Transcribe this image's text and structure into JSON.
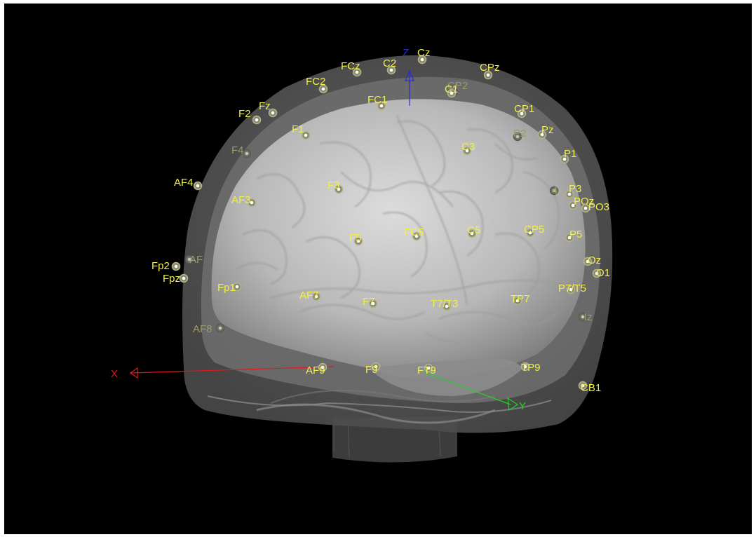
{
  "viewer": {
    "background": "#000000",
    "label_color": "#f2ef4a",
    "dim_label_color": "#9c9a6a"
  },
  "axes": [
    {
      "id": "x",
      "label": "X",
      "color": "#e0191c"
    },
    {
      "id": "y",
      "label": "Y",
      "color": "#22d22a"
    },
    {
      "id": "z",
      "label": "Z",
      "color": "#2b2bd6"
    }
  ],
  "electrodes": [
    {
      "label": "Cz"
    },
    {
      "label": "FCz"
    },
    {
      "label": "C2"
    },
    {
      "label": "CPz"
    },
    {
      "label": "FC2"
    },
    {
      "label": "CP2"
    },
    {
      "label": "C1"
    },
    {
      "label": "FC1"
    },
    {
      "label": "F2"
    },
    {
      "label": "Fz"
    },
    {
      "label": "CP1"
    },
    {
      "label": "F1"
    },
    {
      "label": "P2"
    },
    {
      "label": "Pz"
    },
    {
      "label": "C3"
    },
    {
      "label": "F4"
    },
    {
      "label": "P1"
    },
    {
      "label": "AF4"
    },
    {
      "label": "F3"
    },
    {
      "label": "4"
    },
    {
      "label": "P3"
    },
    {
      "label": "AF3"
    },
    {
      "label": "POz"
    },
    {
      "label": "PO3"
    },
    {
      "label": "FC5"
    },
    {
      "label": "C5"
    },
    {
      "label": "CP5"
    },
    {
      "label": "P5"
    },
    {
      "label": "F5"
    },
    {
      "label": "AF"
    },
    {
      "label": "Oz"
    },
    {
      "label": "Fp2"
    },
    {
      "label": "O1"
    },
    {
      "label": "Fpz"
    },
    {
      "label": "Fp1"
    },
    {
      "label": "P7/T5"
    },
    {
      "label": "AF7"
    },
    {
      "label": "F7"
    },
    {
      "label": "T7/T3"
    },
    {
      "label": "TP7"
    },
    {
      "label": "Iz"
    },
    {
      "label": "AF8"
    },
    {
      "label": "AF9"
    },
    {
      "label": "F9"
    },
    {
      "label": "FT9"
    },
    {
      "label": "TP9"
    },
    {
      "label": "CB1"
    }
  ]
}
